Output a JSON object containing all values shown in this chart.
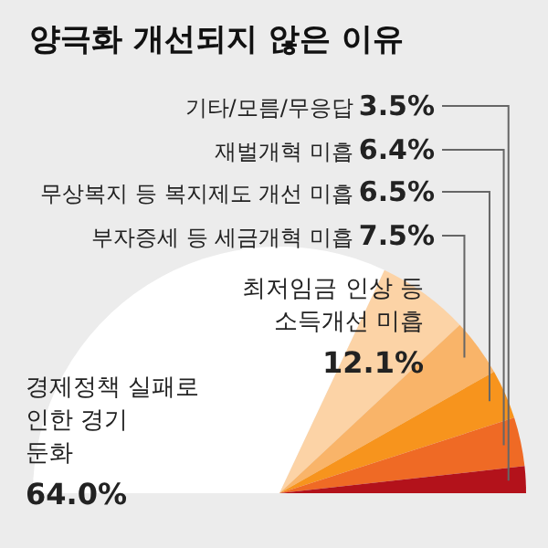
{
  "chart_data": {
    "type": "pie",
    "title": "양극화 개선되지 않은 이유",
    "categories": [
      "경제정책 실패로 인한 경기 둔화",
      "최저임금 인상 등 소득개선 미흡",
      "부자증세 등 세금개혁 미흡",
      "무상복지 등 복지제도 개선 미흡",
      "재벌개혁 미흡",
      "기타/모름/무응답"
    ],
    "values": [
      64.0,
      12.1,
      7.5,
      6.5,
      6.4,
      3.5
    ],
    "value_labels": [
      "64.0%",
      "12.1%",
      "7.5%",
      "6.5%",
      "6.4%",
      "3.5%"
    ],
    "colors": [
      "#ffffff",
      "#fcd3a6",
      "#f9b469",
      "#f7941d",
      "#ef6a25",
      "#b3121b"
    ],
    "legend": false
  }
}
